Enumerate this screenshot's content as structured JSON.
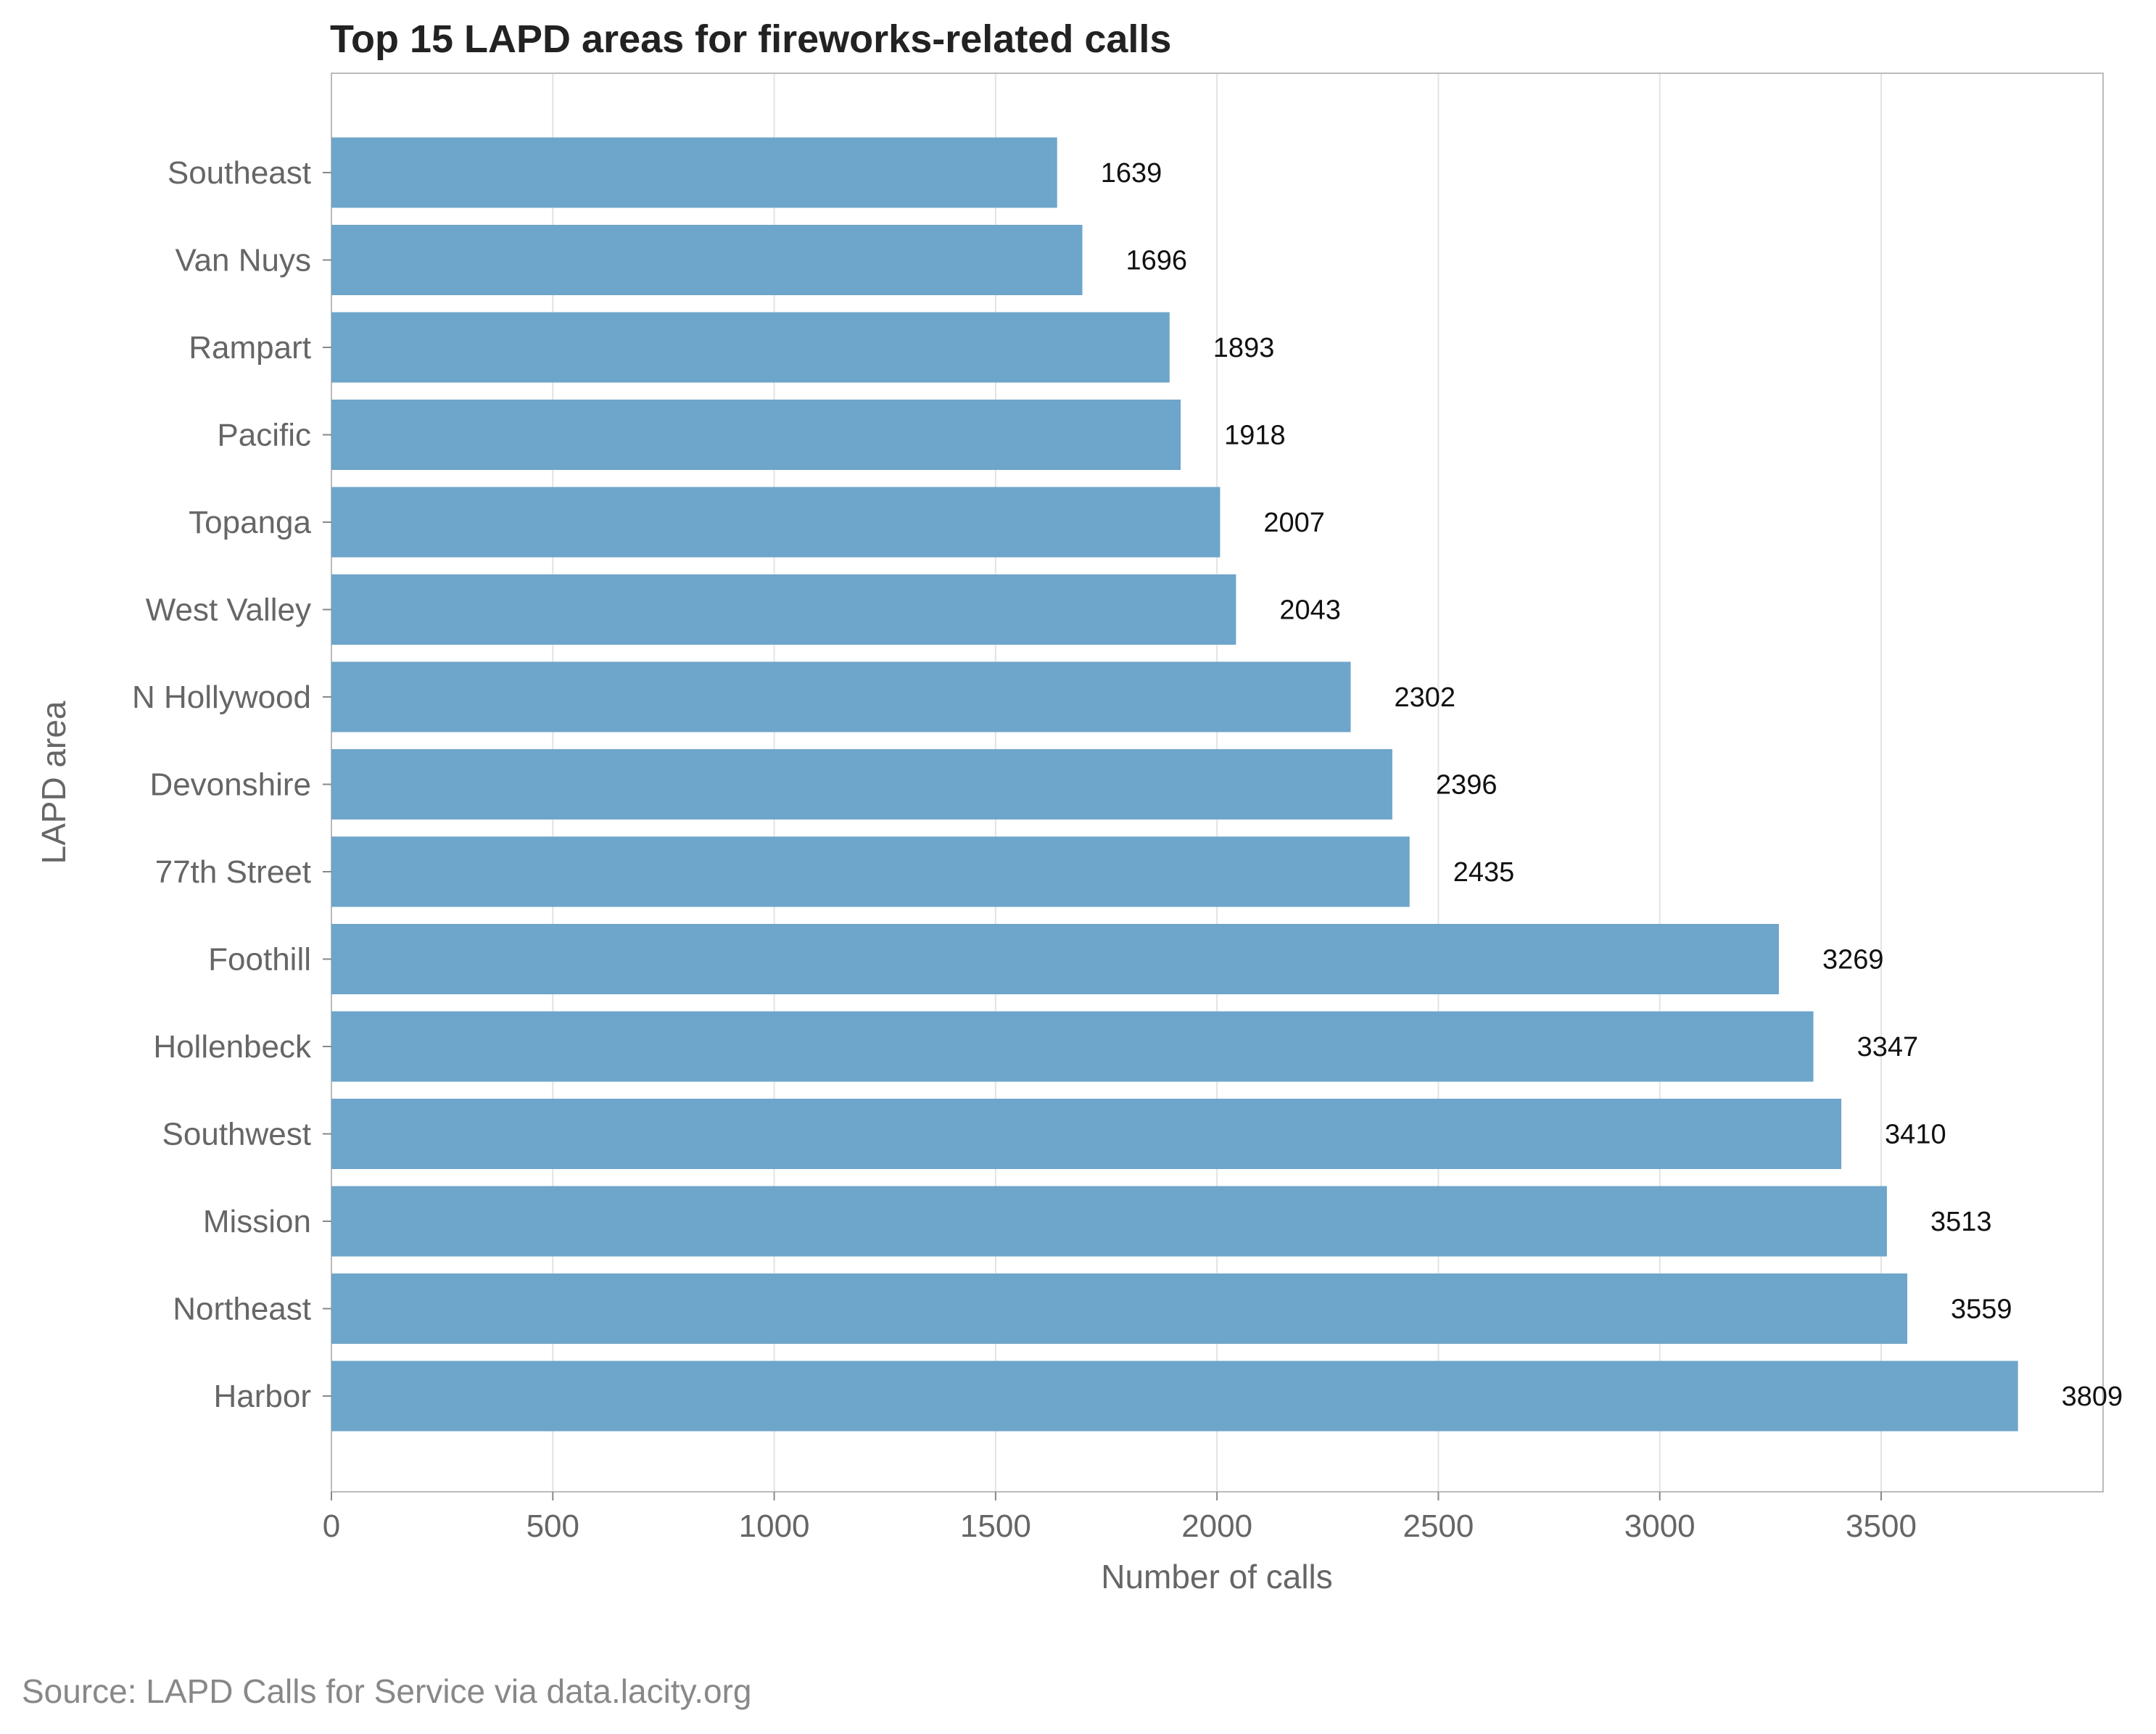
{
  "chart_data": {
    "type": "bar",
    "orientation": "horizontal",
    "title": "Top 15 LAPD areas for fireworks-related calls",
    "xlabel": "Number of calls",
    "ylabel": "LAPD area",
    "source": "Source: LAPD Calls for Service via data.lacity.org",
    "categories": [
      "Southeast",
      "Van Nuys",
      "Rampart",
      "Pacific",
      "Topanga",
      "West Valley",
      "N Hollywood",
      "Devonshire",
      "77th Street",
      "Foothill",
      "Hollenbeck",
      "Southwest",
      "Mission",
      "Northeast",
      "Harbor"
    ],
    "values": [
      1639,
      1696,
      1893,
      1918,
      2007,
      2043,
      2302,
      2396,
      2435,
      3269,
      3347,
      3410,
      3513,
      3559,
      3809
    ],
    "xlim": [
      0,
      4000
    ],
    "xticks": [
      0,
      500,
      1000,
      1500,
      2000,
      2500,
      3000,
      3500
    ],
    "grid": "vertical",
    "bar_color": "#6ea5ca"
  }
}
